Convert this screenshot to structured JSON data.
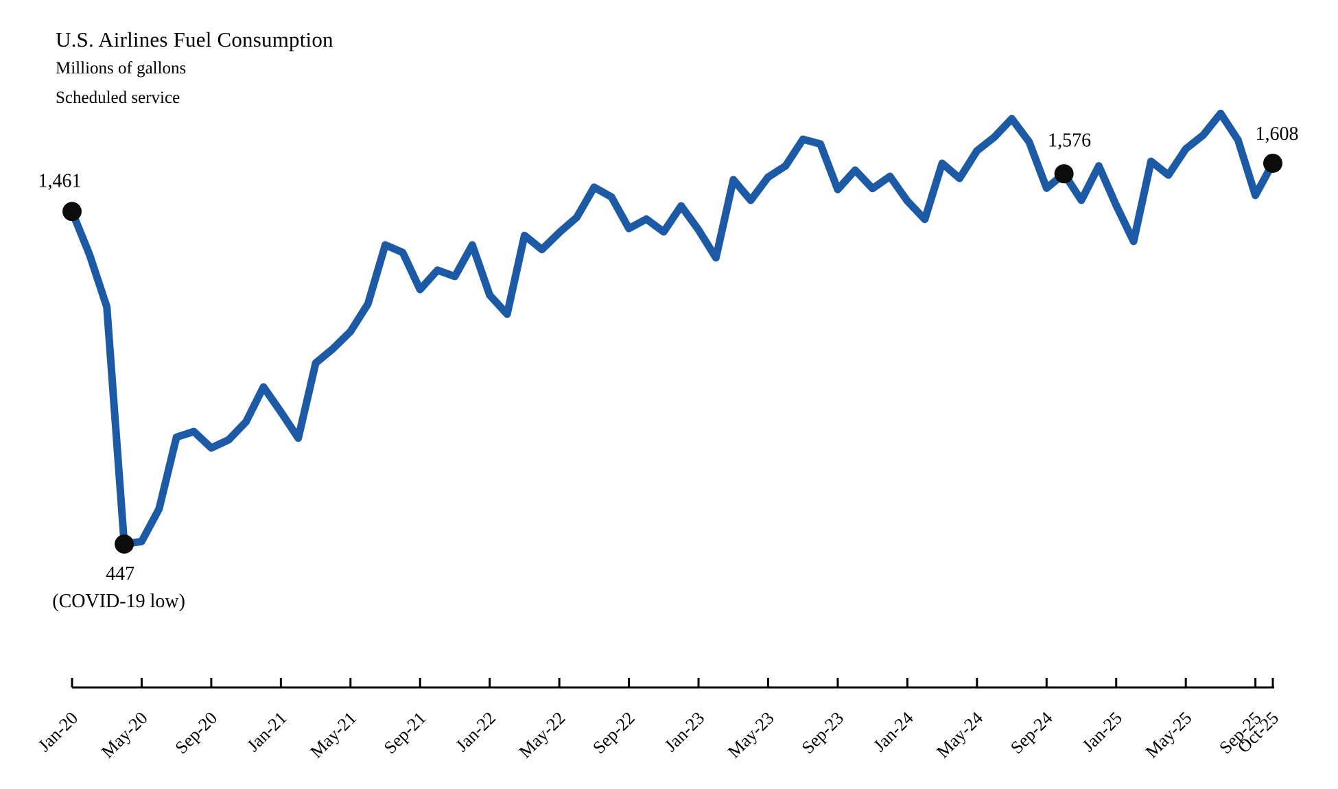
{
  "header": {
    "title": "U.S. Airlines Fuel Consumption",
    "subtitle1": "Millions of gallons",
    "subtitle2": "Scheduled service"
  },
  "chart_data": {
    "type": "line",
    "title": "U.S. Airlines Fuel Consumption",
    "ylabel": "Millions of gallons",
    "series_note": "Scheduled service",
    "grid": false,
    "legend_position": "none",
    "ylim": [
      350,
      1850
    ],
    "line_color": "#1c5aa6",
    "marker_color": "#0c0c0c",
    "x": [
      "Jan-20",
      "Feb-20",
      "Mar-20",
      "Apr-20",
      "May-20",
      "Jun-20",
      "Jul-20",
      "Aug-20",
      "Sep-20",
      "Oct-20",
      "Nov-20",
      "Dec-20",
      "Jan-21",
      "Feb-21",
      "Mar-21",
      "Apr-21",
      "May-21",
      "Jun-21",
      "Jul-21",
      "Aug-21",
      "Sep-21",
      "Oct-21",
      "Nov-21",
      "Dec-21",
      "Jan-22",
      "Feb-22",
      "Mar-22",
      "Apr-22",
      "May-22",
      "Jun-22",
      "Jul-22",
      "Aug-22",
      "Sep-22",
      "Oct-22",
      "Nov-22",
      "Dec-22",
      "Jan-23",
      "Feb-23",
      "Mar-23",
      "Apr-23",
      "May-23",
      "Jun-23",
      "Jul-23",
      "Aug-23",
      "Sep-23",
      "Oct-23",
      "Nov-23",
      "Dec-23",
      "Jan-24",
      "Feb-24",
      "Mar-24",
      "Apr-24",
      "May-24",
      "Jun-24",
      "Jul-24",
      "Aug-24",
      "Sep-24",
      "Oct-24",
      "Nov-24",
      "Dec-24",
      "Jan-25",
      "Feb-25",
      "Mar-25",
      "Apr-25",
      "May-25",
      "Jun-25",
      "Jul-25",
      "Aug-25",
      "Sep-25",
      "Oct-25"
    ],
    "values": [
      1461,
      1330,
      1170,
      447,
      455,
      554,
      773,
      790,
      740,
      765,
      820,
      926,
      850,
      770,
      999,
      1043,
      1095,
      1179,
      1359,
      1336,
      1223,
      1282,
      1263,
      1359,
      1206,
      1148,
      1388,
      1345,
      1397,
      1443,
      1535,
      1505,
      1409,
      1438,
      1399,
      1478,
      1405,
      1320,
      1558,
      1495,
      1566,
      1600,
      1681,
      1667,
      1528,
      1587,
      1531,
      1568,
      1493,
      1437,
      1608,
      1562,
      1646,
      1688,
      1744,
      1673,
      1532,
      1576,
      1495,
      1600,
      1480,
      1370,
      1614,
      1572,
      1652,
      1694,
      1760,
      1679,
      1510,
      1608
    ],
    "x_tick_labels": [
      "Jan-20",
      "May-20",
      "Sep-20",
      "Jan-21",
      "May-21",
      "Sep-21",
      "Jan-22",
      "May-22",
      "Sep-22",
      "Jan-23",
      "May-23",
      "Sep-23",
      "Jan-24",
      "May-24",
      "Sep-24",
      "Jan-25",
      "May-25",
      "Sep-25",
      "Oct-25"
    ],
    "annotations": [
      {
        "x": "Jan-20",
        "value": 1461,
        "label": "1,461"
      },
      {
        "x": "Apr-20",
        "value": 447,
        "label": "447",
        "sublabel": "(COVID-19 low)"
      },
      {
        "x": "Oct-24",
        "value": 1576,
        "label": "1,576"
      },
      {
        "x": "Oct-25",
        "value": 1608,
        "label": "1,608"
      }
    ]
  }
}
